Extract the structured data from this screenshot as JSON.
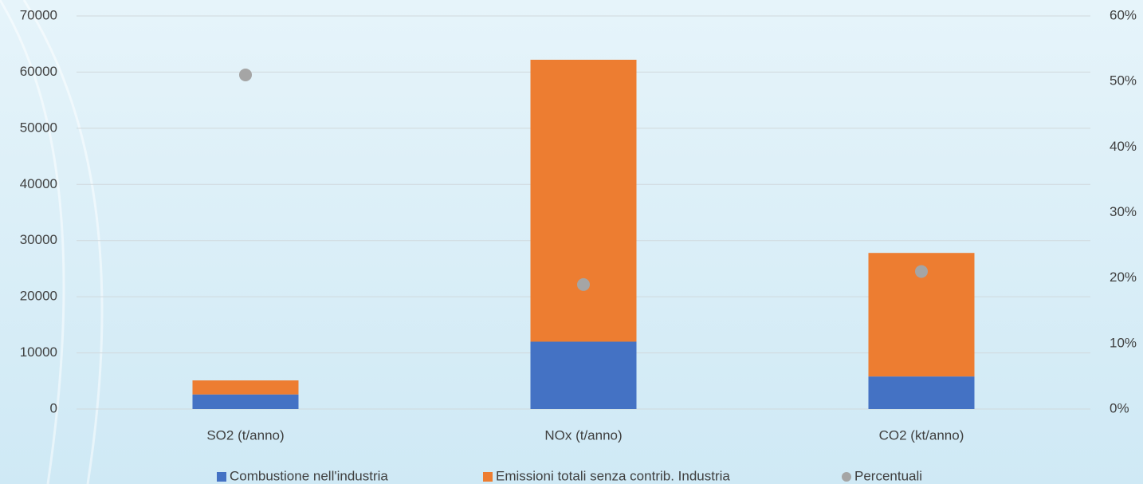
{
  "chart_data": {
    "type": "bar",
    "stacked": true,
    "categories": [
      "SO2 (t/anno)",
      "NOx (t/anno)",
      "CO2 (kt/anno)"
    ],
    "series": [
      {
        "name": "Combustione nell'industria",
        "color": "#4472c4",
        "values": [
          2600,
          12000,
          5800
        ]
      },
      {
        "name": "Emissioni totali senza contrib. Industria",
        "color": "#ed7d31",
        "values": [
          2500,
          50200,
          22000
        ]
      },
      {
        "name": "Percentuali",
        "color": "#a5a5a5",
        "axis": "y2",
        "marker": "circle",
        "values": [
          51,
          19,
          21
        ]
      }
    ],
    "ylim": [
      0,
      70000
    ],
    "yticks": [
      0,
      10000,
      20000,
      30000,
      40000,
      50000,
      60000,
      70000
    ],
    "y2lim": [
      0,
      60
    ],
    "y2ticks": [
      {
        "value": 0,
        "label": "0%"
      },
      {
        "value": 10,
        "label": "10%"
      },
      {
        "value": 20,
        "label": "20%"
      },
      {
        "value": 30,
        "label": "30%"
      },
      {
        "value": 40,
        "label": "40%"
      },
      {
        "value": 50,
        "label": "50%"
      },
      {
        "value": 60,
        "label": "60%"
      }
    ],
    "grid": true,
    "legend": "bottom"
  }
}
